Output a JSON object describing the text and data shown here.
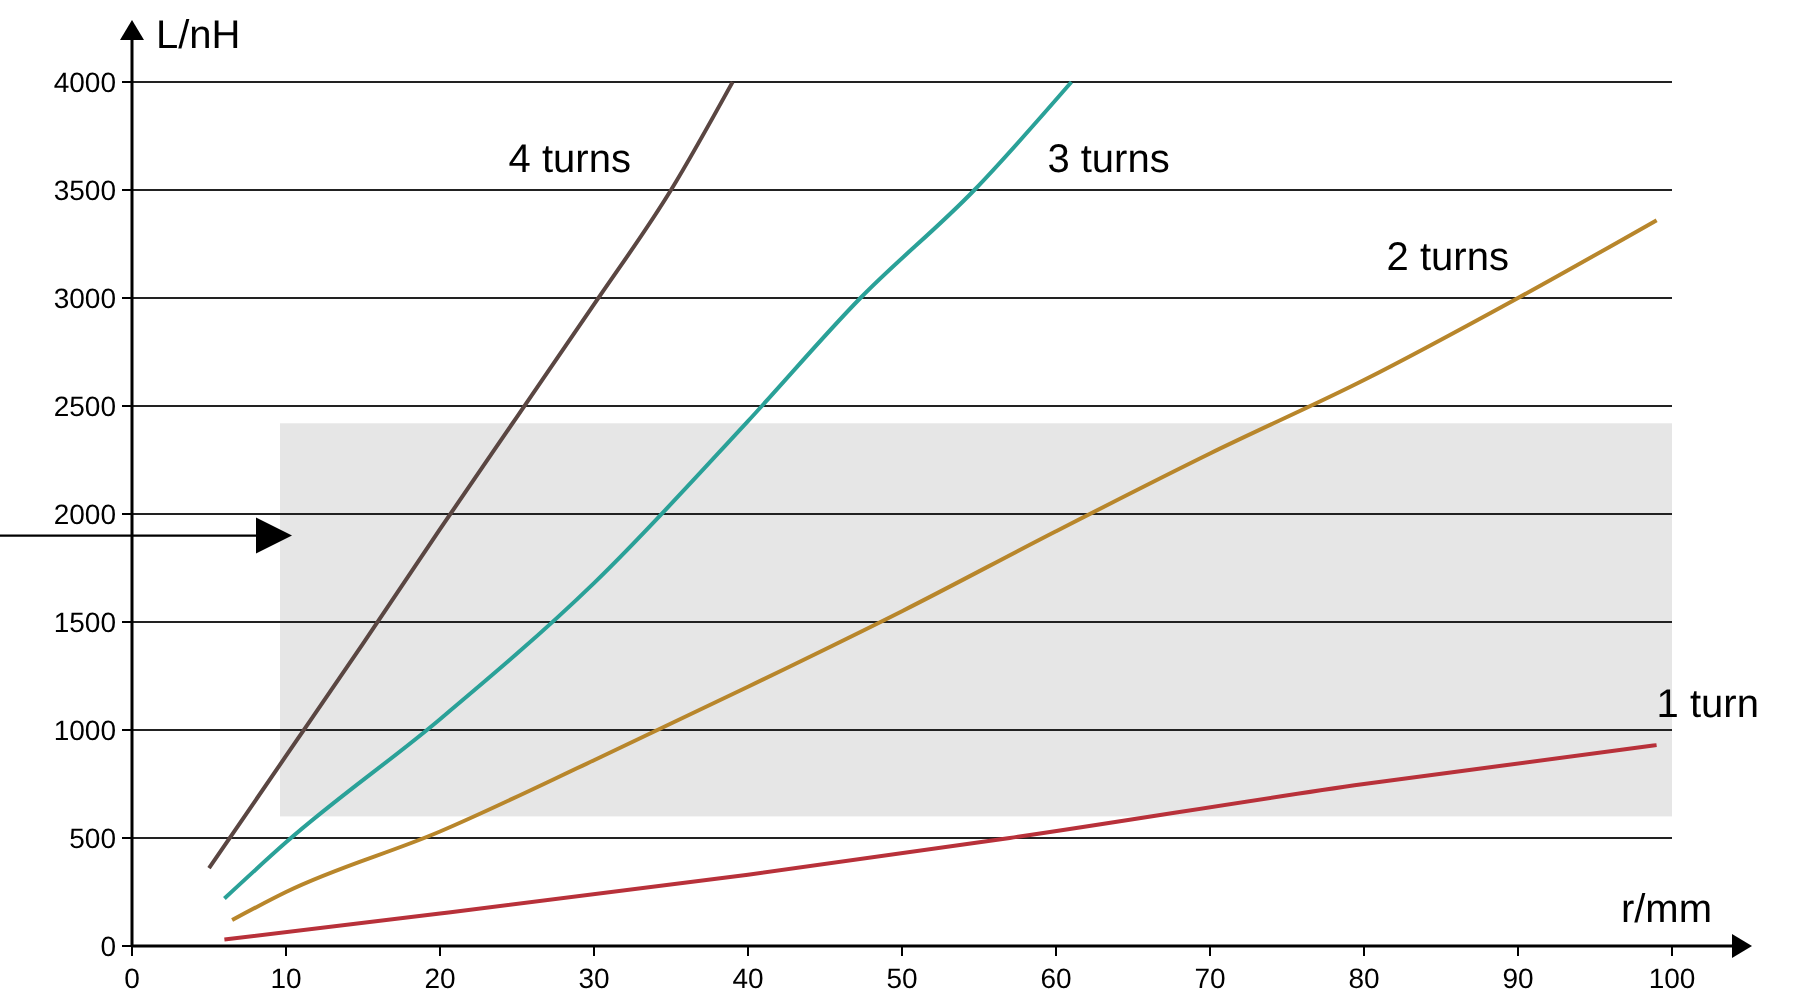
{
  "chart_data": {
    "type": "line",
    "xlabel": "r/mm",
    "ylabel": "L/nH",
    "xlim": [
      0,
      100
    ],
    "ylim": [
      0,
      4000
    ],
    "xticks": [
      0,
      10,
      20,
      30,
      40,
      50,
      60,
      70,
      80,
      90,
      100
    ],
    "yticks": [
      0,
      500,
      1000,
      1500,
      2000,
      2500,
      3000,
      3500,
      4000
    ],
    "grid": "y",
    "marker": "none",
    "line_style": "solid",
    "series": [
      {
        "name": "4 turns",
        "color": "#5a4642",
        "x": [
          5,
          10,
          15,
          20,
          25,
          30,
          35,
          39
        ],
        "values": [
          360,
          880,
          1400,
          1930,
          2450,
          2970,
          3500,
          4000
        ]
      },
      {
        "name": "3 turns",
        "color": "#2aa198",
        "x": [
          6,
          10,
          20,
          30,
          40,
          47.3,
          54.7,
          61
        ],
        "values": [
          220,
          480,
          1050,
          1680,
          2430,
          3000,
          3500,
          4000
        ]
      },
      {
        "name": "2 turns",
        "color": "#b8862b",
        "x": [
          6.5,
          10,
          20,
          30,
          40,
          50,
          60,
          70,
          80,
          90,
          99
        ],
        "values": [
          120,
          250,
          530,
          860,
          1200,
          1550,
          1920,
          2280,
          2620,
          3000,
          3360
        ]
      },
      {
        "name": "1 turn",
        "color": "#b8313a",
        "x": [
          6,
          20,
          40,
          57,
          80,
          99
        ],
        "values": [
          30,
          150,
          330,
          500,
          750,
          930
        ]
      }
    ],
    "bands": [
      {
        "axis": "y",
        "from": 600,
        "to": 2420,
        "color": "#e6e6e6"
      }
    ],
    "ref_lines": [
      {
        "axis": "y",
        "value": 1900
      }
    ]
  }
}
